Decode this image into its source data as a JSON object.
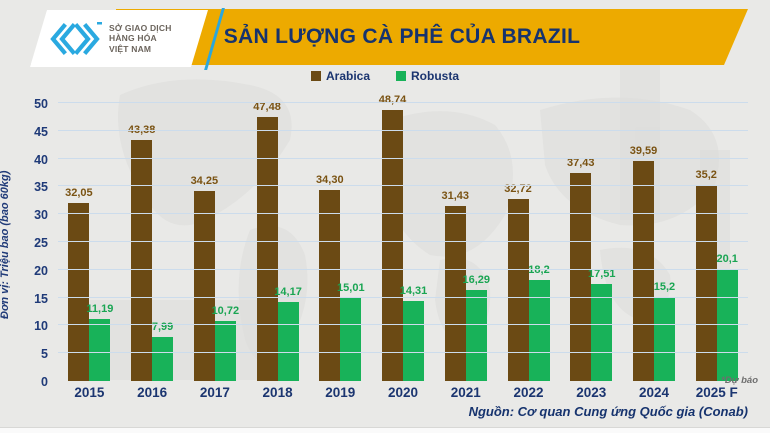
{
  "header": {
    "title": "SẢN LƯỢNG CÀ PHÊ CỦA BRAZIL",
    "logo": {
      "lines": [
        "SỞ GIAO DỊCH",
        "HÀNG HÓA",
        "VIỆT NAM"
      ]
    }
  },
  "chart_data": {
    "type": "bar",
    "title": "SẢN LƯỢNG CÀ PHÊ CỦA BRAZIL",
    "ylabel": "Đơn vị: Triệu bao (bao 60kg)",
    "categories": [
      "2015",
      "2016",
      "2017",
      "2018",
      "2019",
      "2020",
      "2021",
      "2022",
      "2023",
      "2024",
      "2025 F"
    ],
    "series": [
      {
        "name": "Arabica",
        "color": "#6b4a14",
        "label_color": "#7a5313",
        "values": [
          32.05,
          43.38,
          34.25,
          47.48,
          34.3,
          48.74,
          31.43,
          32.72,
          37.43,
          39.59,
          35.2
        ],
        "labels": [
          "32,05",
          "43,38",
          "34,25",
          "47,48",
          "34,30",
          "48,74",
          "31,43",
          "32,72",
          "37,43",
          "39,59",
          "35,2"
        ]
      },
      {
        "name": "Robusta",
        "color": "#18b259",
        "label_color": "#1aa553",
        "values": [
          11.19,
          7.99,
          10.72,
          14.17,
          15.01,
          14.31,
          16.29,
          18.2,
          17.51,
          15.2,
          20.1
        ],
        "labels": [
          "11,19",
          "7,99",
          "10,72",
          "14,17",
          "15,01",
          "14,31",
          "16,29",
          "18,2",
          "17,51",
          "15,2",
          "20,1"
        ]
      }
    ],
    "ylim": [
      0,
      50
    ],
    "yticks": [
      0,
      5,
      10,
      15,
      20,
      25,
      30,
      35,
      40,
      45,
      50
    ],
    "grid": true,
    "legend_position": "top"
  },
  "footnote": "*Dự báo",
  "source": "Nguồn: Cơ quan Cung ứng Quốc gia (Conab)",
  "colors": {
    "banner": "#edaa00",
    "title_text": "#16336e",
    "axis_text": "#1f3a78",
    "logo_blue": "#2aa9e0",
    "background": "#e9e9e7"
  }
}
